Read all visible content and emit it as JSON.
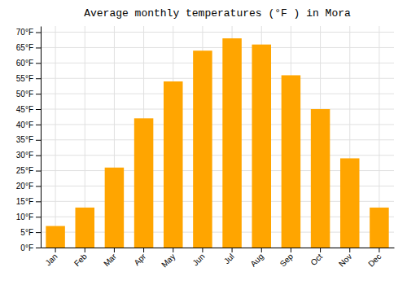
{
  "chart_data": {
    "type": "bar",
    "title": "Average monthly temperatures (°F ) in Mora",
    "categories": [
      "Jan",
      "Feb",
      "Mar",
      "Apr",
      "May",
      "Jun",
      "Jul",
      "Aug",
      "Sep",
      "Oct",
      "Nov",
      "Dec"
    ],
    "values": [
      7,
      13,
      26,
      42,
      54,
      64,
      68,
      66,
      56,
      45,
      29,
      13
    ],
    "color": "#FFA500",
    "ylim": [
      0,
      72
    ],
    "yticks": [
      {
        "value": 0,
        "label": "0°F"
      },
      {
        "value": 5,
        "label": "5°F"
      },
      {
        "value": 10,
        "label": "10°F"
      },
      {
        "value": 15,
        "label": "15°F"
      },
      {
        "value": 20,
        "label": "20°F"
      },
      {
        "value": 25,
        "label": "25°F"
      },
      {
        "value": 30,
        "label": "30°F"
      },
      {
        "value": 35,
        "label": "35°F"
      },
      {
        "value": 40,
        "label": "40°F"
      },
      {
        "value": 45,
        "label": "45°F"
      },
      {
        "value": 50,
        "label": "50°F"
      },
      {
        "value": 55,
        "label": "55°F"
      },
      {
        "value": 60,
        "label": "60°F"
      },
      {
        "value": 65,
        "label": "65°F"
      },
      {
        "value": 70,
        "label": "70°F"
      }
    ],
    "grid": true
  }
}
